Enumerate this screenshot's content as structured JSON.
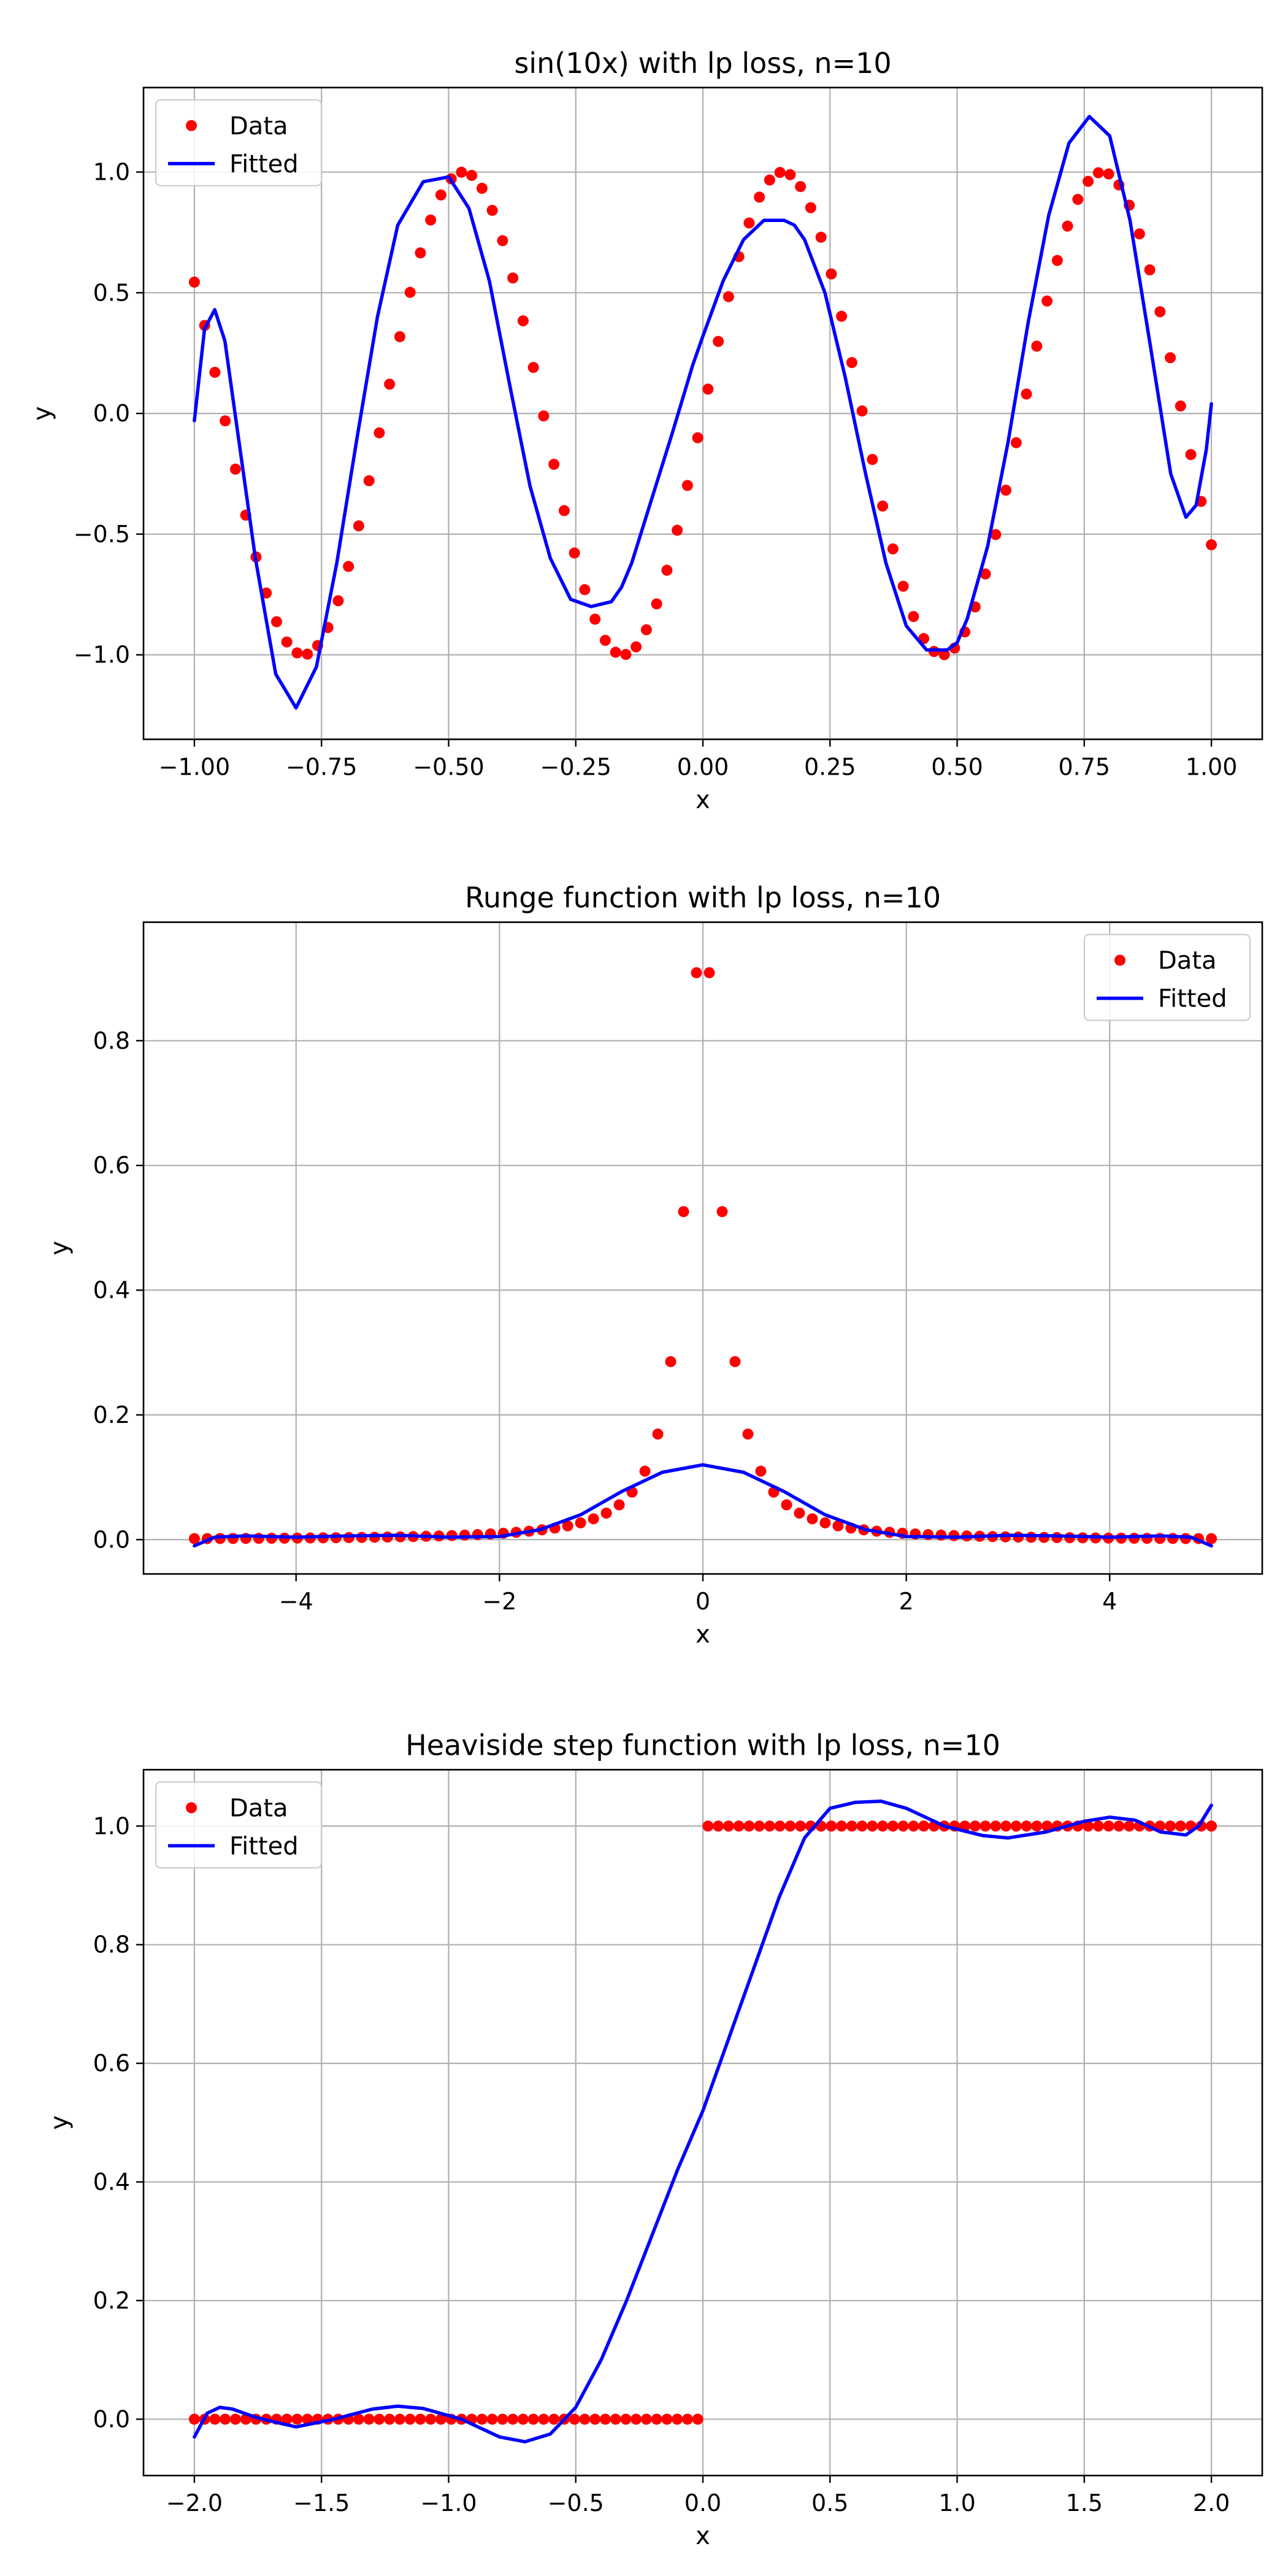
{
  "chart_data": [
    {
      "type": "scatter+line",
      "title": "sin(10x) with lp loss, n=10",
      "xlabel": "x",
      "ylabel": "y",
      "xlim": [
        -1.1,
        1.1
      ],
      "ylim": [
        -1.35,
        1.35
      ],
      "xticks": [
        -1.0,
        -0.75,
        -0.5,
        -0.25,
        0.0,
        0.25,
        0.5,
        0.75,
        1.0
      ],
      "xtick_labels": [
        "−1.00",
        "−0.75",
        "−0.50",
        "−0.25",
        "0.00",
        "0.25",
        "0.50",
        "0.75",
        "1.00"
      ],
      "yticks": [
        -1.0,
        -0.5,
        0.0,
        0.5,
        1.0
      ],
      "ytick_labels": [
        "−1.0",
        "−0.5",
        "0.0",
        "0.5",
        "1.0"
      ],
      "grid": true,
      "legend": {
        "position": "upper-left",
        "entries": [
          "Data",
          "Fitted"
        ]
      },
      "series": [
        {
          "name": "Data",
          "kind": "scatter",
          "color": "#ff0000",
          "function": "sin(10x)",
          "x_range": [
            -1.0,
            1.0
          ],
          "count": 100
        },
        {
          "name": "Fitted",
          "kind": "line",
          "color": "#0000ff",
          "x": [
            -1.0,
            -0.98,
            -0.96,
            -0.94,
            -0.92,
            -0.88,
            -0.84,
            -0.8,
            -0.76,
            -0.72,
            -0.68,
            -0.64,
            -0.6,
            -0.55,
            -0.5,
            -0.46,
            -0.42,
            -0.38,
            -0.34,
            -0.3,
            -0.26,
            -0.22,
            -0.18,
            -0.16,
            -0.14,
            -0.1,
            -0.06,
            -0.02,
            0.0,
            0.04,
            0.08,
            0.12,
            0.16,
            0.18,
            0.2,
            0.24,
            0.28,
            0.32,
            0.36,
            0.4,
            0.44,
            0.48,
            0.5,
            0.52,
            0.56,
            0.6,
            0.64,
            0.68,
            0.72,
            0.76,
            0.8,
            0.84,
            0.88,
            0.92,
            0.95,
            0.97,
            0.99,
            1.0
          ],
          "y": [
            -0.03,
            0.35,
            0.43,
            0.3,
            0.0,
            -0.6,
            -1.08,
            -1.22,
            -1.05,
            -0.62,
            -0.1,
            0.4,
            0.78,
            0.96,
            0.98,
            0.85,
            0.55,
            0.12,
            -0.3,
            -0.6,
            -0.77,
            -0.8,
            -0.78,
            -0.72,
            -0.62,
            -0.35,
            -0.08,
            0.2,
            0.32,
            0.55,
            0.72,
            0.8,
            0.8,
            0.78,
            0.72,
            0.5,
            0.15,
            -0.25,
            -0.62,
            -0.88,
            -0.98,
            -0.98,
            -0.95,
            -0.85,
            -0.55,
            -0.12,
            0.38,
            0.82,
            1.12,
            1.23,
            1.15,
            0.8,
            0.28,
            -0.25,
            -0.43,
            -0.38,
            -0.15,
            0.04
          ]
        }
      ]
    },
    {
      "type": "scatter+line",
      "title": "Runge function with lp loss, n=10",
      "xlabel": "x",
      "ylabel": "y",
      "xlim": [
        -5.5,
        5.5
      ],
      "ylim": [
        -0.055,
        0.99
      ],
      "xticks": [
        -4,
        -2,
        0,
        2,
        4
      ],
      "xtick_labels": [
        "−4",
        "−2",
        "0",
        "2",
        "4"
      ],
      "yticks": [
        0.0,
        0.2,
        0.4,
        0.6,
        0.8
      ],
      "ytick_labels": [
        "0.0",
        "0.2",
        "0.4",
        "0.6",
        "0.8"
      ],
      "grid": true,
      "legend": {
        "position": "upper-right",
        "entries": [
          "Data",
          "Fitted"
        ]
      },
      "series": [
        {
          "name": "Data",
          "kind": "scatter",
          "color": "#ff0000",
          "function": "1/(1+25x^2)",
          "x_range": [
            -5.0,
            5.0
          ],
          "count": 80
        },
        {
          "name": "Fitted",
          "kind": "line",
          "color": "#0000ff",
          "x": [
            -5.0,
            -4.8,
            -4.5,
            -4.0,
            -3.5,
            -3.0,
            -2.5,
            -2.0,
            -1.6,
            -1.2,
            -0.8,
            -0.4,
            0.0,
            0.4,
            0.8,
            1.2,
            1.6,
            2.0,
            2.5,
            3.0,
            3.5,
            4.0,
            4.5,
            4.8,
            5.0
          ],
          "y": [
            -0.01,
            0.004,
            0.006,
            0.004,
            0.006,
            0.007,
            0.004,
            0.005,
            0.016,
            0.04,
            0.077,
            0.108,
            0.12,
            0.108,
            0.077,
            0.04,
            0.016,
            0.005,
            0.004,
            0.007,
            0.006,
            0.004,
            0.006,
            0.004,
            -0.01
          ]
        }
      ]
    },
    {
      "type": "scatter+line",
      "title": "Heaviside step function with lp loss, n=10",
      "xlabel": "x",
      "ylabel": "y",
      "xlim": [
        -2.2,
        2.2
      ],
      "ylim": [
        -0.095,
        1.095
      ],
      "xticks": [
        -2.0,
        -1.5,
        -1.0,
        -0.5,
        0.0,
        0.5,
        1.0,
        1.5,
        2.0
      ],
      "xtick_labels": [
        "−2.0",
        "−1.5",
        "−1.0",
        "−0.5",
        "0.0",
        "0.5",
        "1.0",
        "1.5",
        "2.0"
      ],
      "yticks": [
        0.0,
        0.2,
        0.4,
        0.6,
        0.8,
        1.0
      ],
      "ytick_labels": [
        "0.0",
        "0.2",
        "0.4",
        "0.6",
        "0.8",
        "1.0"
      ],
      "grid": true,
      "legend": {
        "position": "upper-left",
        "entries": [
          "Data",
          "Fitted"
        ]
      },
      "series": [
        {
          "name": "Data",
          "kind": "scatter",
          "color": "#ff0000",
          "function": "step(x)",
          "x_range": [
            -2.0,
            2.0
          ],
          "count": 100
        },
        {
          "name": "Fitted",
          "kind": "line",
          "color": "#0000ff",
          "x": [
            -2.0,
            -1.95,
            -1.9,
            -1.85,
            -1.75,
            -1.6,
            -1.45,
            -1.3,
            -1.2,
            -1.1,
            -0.95,
            -0.8,
            -0.7,
            -0.6,
            -0.5,
            -0.4,
            -0.3,
            -0.2,
            -0.1,
            0.0,
            0.1,
            0.2,
            0.3,
            0.4,
            0.5,
            0.6,
            0.7,
            0.8,
            0.95,
            1.1,
            1.2,
            1.35,
            1.5,
            1.6,
            1.7,
            1.8,
            1.9,
            1.95,
            2.0
          ],
          "y": [
            -0.03,
            0.01,
            0.02,
            0.017,
            0.002,
            -0.013,
            0.0,
            0.017,
            0.022,
            0.018,
            0.0,
            -0.03,
            -0.038,
            -0.025,
            0.02,
            0.1,
            0.2,
            0.31,
            0.42,
            0.52,
            0.64,
            0.76,
            0.88,
            0.98,
            1.03,
            1.04,
            1.042,
            1.03,
            1.0,
            0.984,
            0.98,
            0.99,
            1.008,
            1.015,
            1.01,
            0.99,
            0.985,
            1.0,
            1.035
          ]
        }
      ]
    }
  ]
}
